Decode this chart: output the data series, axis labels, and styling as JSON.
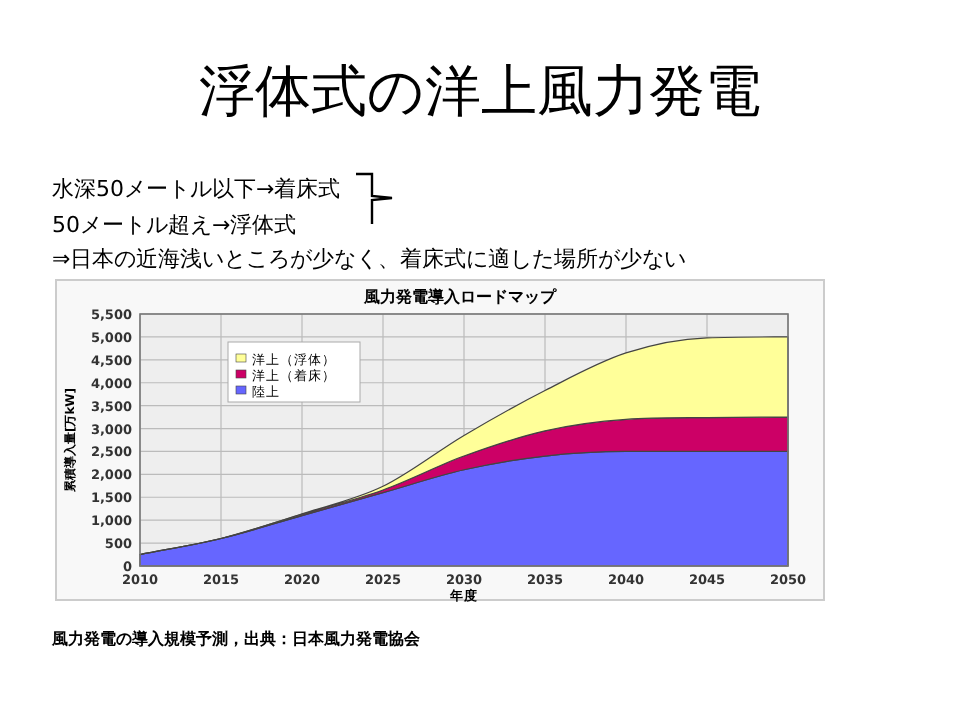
{
  "chart_data": {
    "type": "area",
    "stacked": true,
    "title": "浮体式の洋上風力発電",
    "subtitle": "風力発電導入ロードマップ",
    "xlabel": "年度",
    "ylabel": "累積導入量[万kW]",
    "x": [
      2010,
      2015,
      2020,
      2025,
      2030,
      2035,
      2040,
      2045,
      2050
    ],
    "series": [
      {
        "name": "陸上",
        "color": "#6666ff",
        "values": [
          250,
          600,
          1100,
          1600,
          2100,
          2400,
          2500,
          2500,
          2500
        ]
      },
      {
        "name": "洋上（着床）",
        "color": "#cc0066",
        "values": [
          0,
          0,
          30,
          60,
          300,
          550,
          700,
          740,
          750
        ]
      },
      {
        "name": "洋上（浮体）",
        "color": "#ffff99",
        "values": [
          0,
          0,
          10,
          80,
          450,
          880,
          1450,
          1740,
          1750
        ]
      }
    ],
    "xlim": [
      2010,
      2050
    ],
    "xticks": [
      2010,
      2015,
      2020,
      2025,
      2030,
      2035,
      2040,
      2045,
      2050
    ],
    "ylim": [
      0,
      5500
    ],
    "yticks": [
      0,
      500,
      {
        "value": 1000,
        "label": "1,000"
      },
      {
        "value": 1500,
        "label": "1,500"
      },
      {
        "value": 2000,
        "label": "2,000"
      },
      {
        "value": 2500,
        "label": "2,500"
      },
      {
        "value": 3000,
        "label": "3,000"
      },
      {
        "value": 3500,
        "label": "3,500"
      },
      {
        "value": 4000,
        "label": "4,000"
      },
      {
        "value": 4500,
        "label": "4,500"
      },
      {
        "value": 5000,
        "label": "5,000"
      },
      {
        "value": 5500,
        "label": "5,500"
      }
    ],
    "grid": true,
    "legend": "top left",
    "annotations": [
      "水深50メートル以下→着床式",
      "50メートル超え→浮体式",
      "⇒日本の近海浅いところが少なく、着床式に適した場所が少ない",
      "風力発電の導入規模予測，出典：日本風力発電協会"
    ]
  }
}
